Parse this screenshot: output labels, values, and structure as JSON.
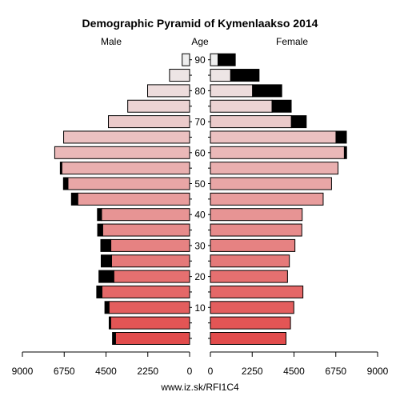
{
  "chart_data": {
    "type": "bar",
    "title": "Demographic Pyramid of Kymenlaakso 2014",
    "left_label": "Male",
    "center_label": "Age",
    "right_label": "Female",
    "footer": "www.iz.sk/RFI1C4",
    "age_ticks": [
      "10",
      "20",
      "30",
      "40",
      "50",
      "60",
      "70",
      "80",
      "90"
    ],
    "xticks_left": [
      "9000",
      "6750",
      "4500",
      "2250",
      "0"
    ],
    "xticks_right": [
      "0",
      "2250",
      "4500",
      "6750",
      "9000"
    ],
    "xlim": [
      0,
      9000
    ],
    "age_groups": [
      "0-4",
      "5-9",
      "10-14",
      "15-19",
      "20-24",
      "25-29",
      "30-34",
      "35-39",
      "40-44",
      "45-49",
      "50-54",
      "55-59",
      "60-64",
      "65-69",
      "70-74",
      "75-79",
      "80-84",
      "85-89",
      "90+"
    ],
    "series": [
      {
        "name": "Male",
        "values": [
          4150,
          4330,
          4560,
          5000,
          4880,
          4760,
          4780,
          4950,
          4960,
          6360,
          6790,
          6960,
          7260,
          6780,
          4370,
          3330,
          2260,
          1080,
          400
        ],
        "surplus": [
          160,
          80,
          220,
          280,
          800,
          560,
          540,
          270,
          220,
          340,
          240,
          80,
          0,
          0,
          0,
          0,
          0,
          0,
          0
        ]
      },
      {
        "name": "Female",
        "values": [
          4070,
          4310,
          4490,
          4980,
          4150,
          4250,
          4550,
          4920,
          4940,
          6070,
          6520,
          6870,
          7330,
          7320,
          5160,
          4350,
          3840,
          2620,
          1340
        ],
        "surplus": [
          0,
          0,
          0,
          0,
          0,
          0,
          0,
          0,
          0,
          0,
          0,
          0,
          120,
          560,
          800,
          1030,
          1570,
          1530,
          930
        ]
      }
    ]
  }
}
